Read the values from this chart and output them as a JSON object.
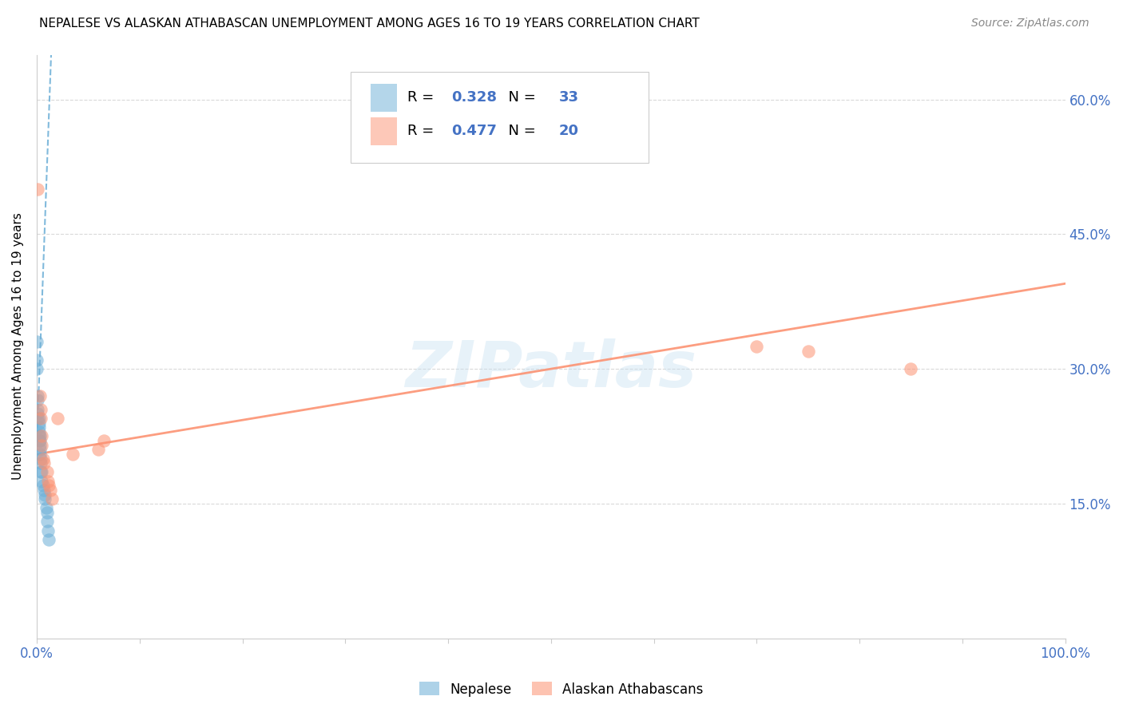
{
  "title": "NEPALESE VS ALASKAN ATHABASCAN UNEMPLOYMENT AMONG AGES 16 TO 19 YEARS CORRELATION CHART",
  "source": "Source: ZipAtlas.com",
  "ylabel": "Unemployment Among Ages 16 to 19 years",
  "ytick_labels": [
    "60.0%",
    "45.0%",
    "30.0%",
    "15.0%"
  ],
  "ytick_values": [
    0.6,
    0.45,
    0.3,
    0.15
  ],
  "xlim": [
    0.0,
    1.0
  ],
  "ylim": [
    0.0,
    0.65
  ],
  "watermark": "ZIPatlas",
  "legend_blue_r": "R = 0.328",
  "legend_blue_n": "N = 33",
  "legend_pink_r": "R = 0.477",
  "legend_pink_n": "N = 20",
  "blue_color": "#6baed6",
  "pink_color": "#fc9272",
  "blue_scatter": [
    [
      0.0,
      0.33
    ],
    [
      0.0,
      0.31
    ],
    [
      0.0,
      0.3
    ],
    [
      0.001,
      0.27
    ],
    [
      0.001,
      0.265
    ],
    [
      0.001,
      0.255
    ],
    [
      0.001,
      0.25
    ],
    [
      0.001,
      0.245
    ],
    [
      0.002,
      0.245
    ],
    [
      0.002,
      0.24
    ],
    [
      0.002,
      0.235
    ],
    [
      0.002,
      0.23
    ],
    [
      0.002,
      0.225
    ],
    [
      0.002,
      0.22
    ],
    [
      0.003,
      0.225
    ],
    [
      0.003,
      0.22
    ],
    [
      0.003,
      0.215
    ],
    [
      0.003,
      0.21
    ],
    [
      0.003,
      0.205
    ],
    [
      0.004,
      0.2
    ],
    [
      0.004,
      0.195
    ],
    [
      0.004,
      0.185
    ],
    [
      0.005,
      0.185
    ],
    [
      0.005,
      0.175
    ],
    [
      0.006,
      0.17
    ],
    [
      0.007,
      0.165
    ],
    [
      0.008,
      0.16
    ],
    [
      0.008,
      0.155
    ],
    [
      0.009,
      0.145
    ],
    [
      0.01,
      0.14
    ],
    [
      0.01,
      0.13
    ],
    [
      0.011,
      0.12
    ],
    [
      0.012,
      0.11
    ]
  ],
  "pink_scatter": [
    [
      0.001,
      0.5
    ],
    [
      0.003,
      0.27
    ],
    [
      0.004,
      0.255
    ],
    [
      0.004,
      0.245
    ],
    [
      0.005,
      0.225
    ],
    [
      0.005,
      0.215
    ],
    [
      0.006,
      0.2
    ],
    [
      0.007,
      0.195
    ],
    [
      0.01,
      0.185
    ],
    [
      0.011,
      0.175
    ],
    [
      0.012,
      0.17
    ],
    [
      0.013,
      0.165
    ],
    [
      0.015,
      0.155
    ],
    [
      0.02,
      0.245
    ],
    [
      0.035,
      0.205
    ],
    [
      0.06,
      0.21
    ],
    [
      0.065,
      0.22
    ],
    [
      0.7,
      0.325
    ],
    [
      0.75,
      0.32
    ],
    [
      0.85,
      0.3
    ]
  ],
  "blue_trendline_x": [
    0.0,
    0.014
  ],
  "blue_trendline_y": [
    0.215,
    0.65
  ],
  "pink_trendline_x0": 0.0,
  "pink_trendline_x1": 1.0,
  "pink_trendline_y0": 0.205,
  "pink_trendline_y1": 0.395,
  "background_color": "#ffffff",
  "grid_color": "#d0d0d0"
}
